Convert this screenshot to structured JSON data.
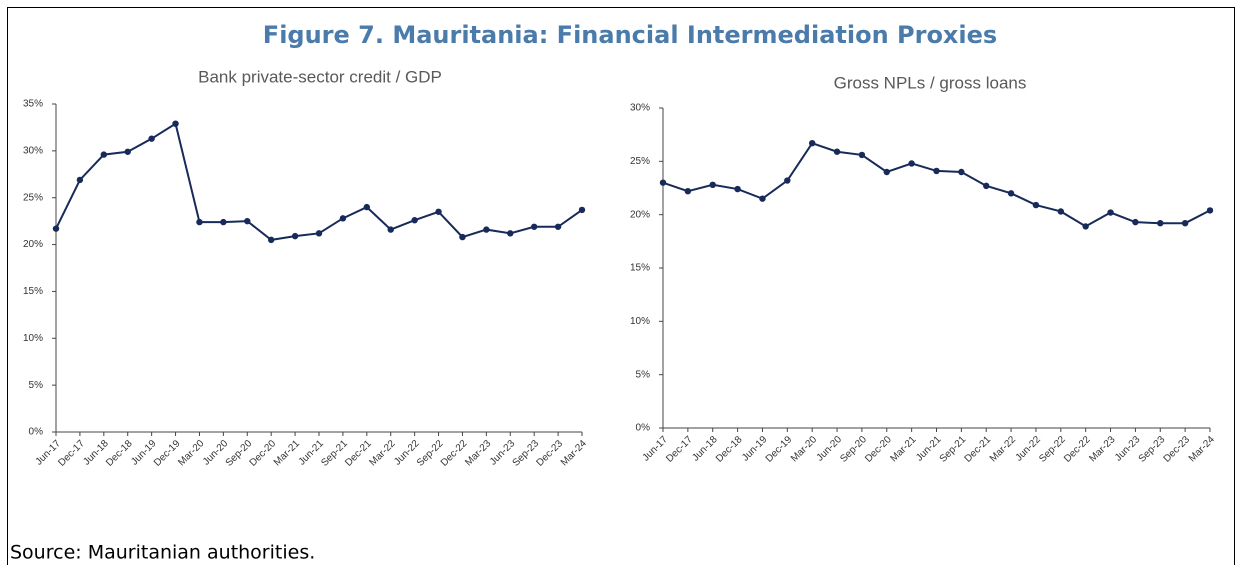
{
  "title": "Figure 7. Mauritania: Financial Intermediation Proxies",
  "source": "Source: Mauritanian authorities.",
  "chart_data": [
    {
      "type": "line",
      "title": "Bank private-sector credit / GDP",
      "categories": [
        "Jun-17",
        "Dec-17",
        "Jun-18",
        "Dec-18",
        "Jun-19",
        "Dec-19",
        "Mar-20",
        "Jun-20",
        "Sep-20",
        "Dec-20",
        "Mar-21",
        "Jun-21",
        "Sep-21",
        "Dec-21",
        "Mar-22",
        "Jun-22",
        "Sep-22",
        "Dec-22",
        "Mar-23",
        "Jun-23",
        "Sep-23",
        "Dec-23",
        "Mar-24"
      ],
      "series": [
        {
          "color": "#172a5a",
          "values": [
            21.7,
            26.9,
            29.6,
            29.9,
            31.3,
            32.9,
            22.4,
            22.4,
            22.5,
            20.5,
            20.9,
            21.2,
            22.8,
            24.0,
            21.6,
            22.6,
            23.5,
            20.8,
            21.6,
            21.2,
            21.9,
            21.9,
            23.7
          ]
        }
      ],
      "ylim": [
        0,
        35
      ],
      "yticks": [
        {
          "value": 0,
          "label": "0%"
        },
        {
          "value": 5,
          "label": "5%"
        },
        {
          "value": 10,
          "label": "10%"
        },
        {
          "value": 15,
          "label": "15%"
        },
        {
          "value": 20,
          "label": "20%"
        },
        {
          "value": 25,
          "label": "25%"
        },
        {
          "value": 30,
          "label": "30%"
        },
        {
          "value": 35,
          "label": "35%"
        }
      ]
    },
    {
      "type": "line",
      "title": "Gross NPLs / gross loans",
      "categories": [
        "Jun-17",
        "Dec-17",
        "Jun-18",
        "Dec-18",
        "Jun-19",
        "Dec-19",
        "Mar-20",
        "Jun-20",
        "Sep-20",
        "Dec-20",
        "Mar-21",
        "Jun-21",
        "Sep-21",
        "Dec-21",
        "Mar-22",
        "Jun-22",
        "Sep-22",
        "Dec-22",
        "Mar-23",
        "Jun-23",
        "Sep-23",
        "Dec-23",
        "Mar-24"
      ],
      "series": [
        {
          "color": "#172a5a",
          "values": [
            23.0,
            22.2,
            22.8,
            22.4,
            21.5,
            23.2,
            26.7,
            25.9,
            25.6,
            24.0,
            24.8,
            24.1,
            24.0,
            22.7,
            22.0,
            20.9,
            20.3,
            18.9,
            20.2,
            19.3,
            19.2,
            19.2,
            20.4
          ]
        }
      ],
      "ylim": [
        0,
        30
      ],
      "yticks": [
        {
          "value": 0,
          "label": "0%"
        },
        {
          "value": 5,
          "label": "5%"
        },
        {
          "value": 10,
          "label": "10%"
        },
        {
          "value": 15,
          "label": "15%"
        },
        {
          "value": 20,
          "label": "20%"
        },
        {
          "value": 25,
          "label": "25%"
        },
        {
          "value": 30,
          "label": "30%"
        }
      ]
    }
  ]
}
